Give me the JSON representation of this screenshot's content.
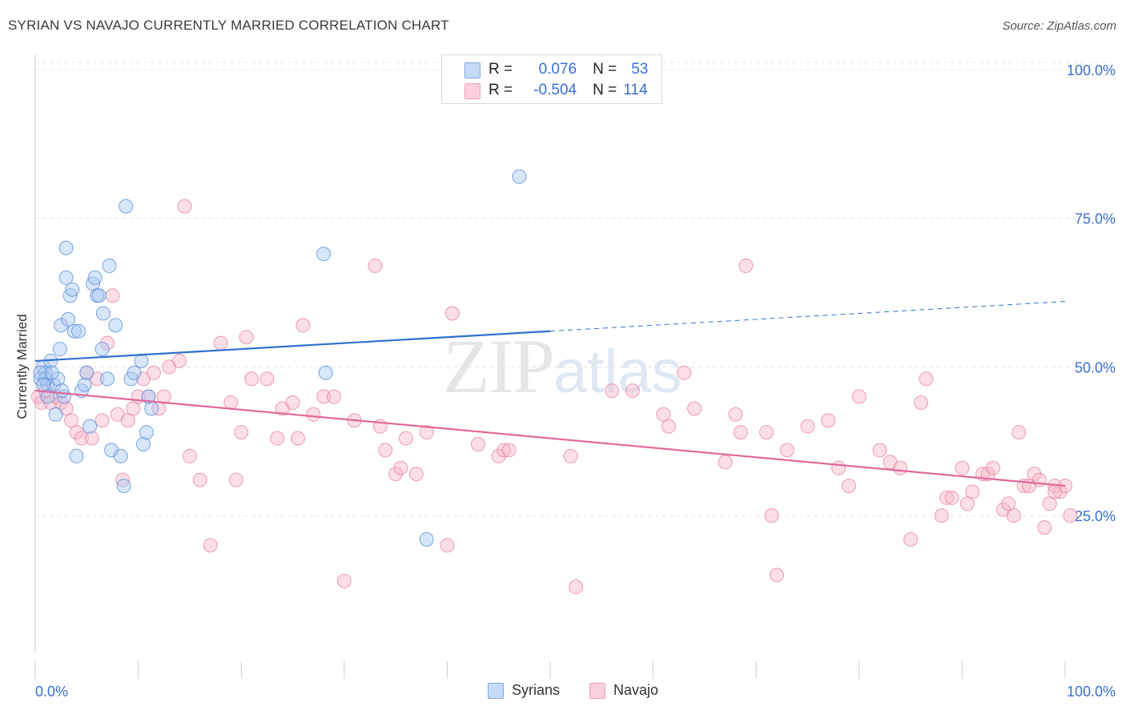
{
  "header": {
    "title": "SYRIAN VS NAVAJO CURRENTLY MARRIED CORRELATION CHART",
    "source": "Source: ZipAtlas.com"
  },
  "watermark": {
    "zip": "ZIP",
    "atlas": "atlas"
  },
  "legend": {
    "rows": [
      {
        "r_label": "R =",
        "r_value": "0.076",
        "n_label": "N =",
        "n_value": "53",
        "color": "#a9c8f3"
      },
      {
        "r_label": "R =",
        "r_value": "-0.504",
        "n_label": "N =",
        "n_value": "114",
        "color": "#f7b6c8"
      }
    ]
  },
  "bottom_legend": [
    {
      "label": "Syrians",
      "color": "#a9c8f3"
    },
    {
      "label": "Navajo",
      "color": "#f7b6c8"
    }
  ],
  "chart_data": {
    "type": "scatter",
    "title": "SYRIAN VS NAVAJO CURRENTLY MARRIED CORRELATION CHART",
    "xlabel": "",
    "ylabel": "Currently Married",
    "xlim": [
      0,
      100
    ],
    "ylim": [
      2,
      102
    ],
    "x_tick_labels": [
      "0.0%",
      "100.0%"
    ],
    "y_tick_labels": [
      "25.0%",
      "50.0%",
      "75.0%",
      "100.0%"
    ],
    "y_ticks": [
      25,
      50,
      75,
      100
    ],
    "grid": true,
    "colors": {
      "syrians_fill": "#a9c8f3",
      "syrians_stroke": "#5b8fd6",
      "syrians_line": "#2f6fce",
      "navajo_fill": "#f7b6c8",
      "navajo_stroke": "#e67fa0",
      "navajo_line": "#e0679a"
    },
    "series": [
      {
        "name": "Syrians",
        "trend": {
          "x0": 0,
          "y0": 51.0,
          "x1": 50,
          "y1": 56.0,
          "x_ext": 100,
          "y_ext": 61.0
        },
        "points": [
          [
            0.5,
            48
          ],
          [
            0.8,
            50
          ],
          [
            1.0,
            49
          ],
          [
            1.2,
            47
          ],
          [
            1.5,
            51
          ],
          [
            1.8,
            47
          ],
          [
            2.0,
            42
          ],
          [
            2.2,
            48
          ],
          [
            2.4,
            53
          ],
          [
            2.5,
            57
          ],
          [
            2.8,
            45
          ],
          [
            3.0,
            65
          ],
          [
            3.2,
            58
          ],
          [
            3.4,
            62
          ],
          [
            3.6,
            63
          ],
          [
            3.8,
            56
          ],
          [
            4.0,
            35
          ],
          [
            4.2,
            56
          ],
          [
            4.5,
            46
          ],
          [
            4.8,
            47
          ],
          [
            5.0,
            49
          ],
          [
            5.3,
            40
          ],
          [
            5.6,
            64
          ],
          [
            5.8,
            65
          ],
          [
            6.0,
            62
          ],
          [
            6.2,
            62
          ],
          [
            6.5,
            53
          ],
          [
            6.6,
            59
          ],
          [
            7.0,
            48
          ],
          [
            7.2,
            67
          ],
          [
            7.4,
            36
          ],
          [
            7.8,
            57
          ],
          [
            8.3,
            35
          ],
          [
            8.6,
            30
          ],
          [
            8.8,
            77
          ],
          [
            9.3,
            48
          ],
          [
            9.6,
            49
          ],
          [
            10.3,
            51
          ],
          [
            10.5,
            37
          ],
          [
            10.8,
            39
          ],
          [
            11.0,
            45
          ],
          [
            11.3,
            43
          ],
          [
            3.0,
            70
          ],
          [
            28,
            69
          ],
          [
            28.2,
            49
          ],
          [
            38,
            21
          ],
          [
            47,
            82
          ],
          [
            1.0,
            48
          ],
          [
            0.5,
            49
          ],
          [
            1.6,
            49
          ],
          [
            2.6,
            46
          ],
          [
            0.8,
            47
          ],
          [
            1.2,
            45
          ]
        ]
      },
      {
        "name": "Navajo",
        "trend": {
          "x0": 0,
          "y0": 46.0,
          "x1": 100,
          "y1": 30.0
        },
        "points": [
          [
            0.3,
            45
          ],
          [
            0.6,
            44
          ],
          [
            1.0,
            46
          ],
          [
            1.5,
            44
          ],
          [
            2.0,
            45
          ],
          [
            2.5,
            44
          ],
          [
            3.0,
            43
          ],
          [
            3.5,
            41
          ],
          [
            4.0,
            39
          ],
          [
            4.5,
            38
          ],
          [
            5.0,
            49
          ],
          [
            5.5,
            38
          ],
          [
            6.0,
            48
          ],
          [
            6.5,
            41
          ],
          [
            7.0,
            54
          ],
          [
            7.5,
            62
          ],
          [
            8.0,
            42
          ],
          [
            8.5,
            31
          ],
          [
            9.0,
            41
          ],
          [
            9.5,
            43
          ],
          [
            10.0,
            45
          ],
          [
            10.5,
            48
          ],
          [
            11.0,
            45
          ],
          [
            11.5,
            49
          ],
          [
            12.0,
            43
          ],
          [
            12.5,
            45
          ],
          [
            13.0,
            50
          ],
          [
            14.0,
            51
          ],
          [
            14.5,
            77
          ],
          [
            15.0,
            35
          ],
          [
            16.0,
            31
          ],
          [
            17.0,
            20
          ],
          [
            18.0,
            54
          ],
          [
            19.0,
            44
          ],
          [
            19.5,
            31
          ],
          [
            20.0,
            39
          ],
          [
            20.5,
            55
          ],
          [
            21.0,
            48
          ],
          [
            22.5,
            48
          ],
          [
            23.5,
            38
          ],
          [
            24.0,
            43
          ],
          [
            25.0,
            44
          ],
          [
            25.5,
            38
          ],
          [
            26.0,
            57
          ],
          [
            27.0,
            42
          ],
          [
            28.0,
            45
          ],
          [
            29.0,
            45
          ],
          [
            30.0,
            14
          ],
          [
            31.0,
            41
          ],
          [
            33.0,
            67
          ],
          [
            33.5,
            40
          ],
          [
            34.0,
            36
          ],
          [
            35.0,
            32
          ],
          [
            35.5,
            33
          ],
          [
            36.0,
            38
          ],
          [
            37.0,
            32
          ],
          [
            38.0,
            39
          ],
          [
            40.0,
            20
          ],
          [
            40.5,
            59
          ],
          [
            43.0,
            37
          ],
          [
            45.0,
            35
          ],
          [
            45.5,
            36
          ],
          [
            46.0,
            36
          ],
          [
            52.0,
            35
          ],
          [
            52.5,
            13
          ],
          [
            56.0,
            46
          ],
          [
            58.0,
            46
          ],
          [
            61.0,
            42
          ],
          [
            61.5,
            40
          ],
          [
            63.0,
            49
          ],
          [
            64.0,
            43
          ],
          [
            67.0,
            34
          ],
          [
            68.0,
            42
          ],
          [
            68.5,
            39
          ],
          [
            69.0,
            67
          ],
          [
            71.0,
            39
          ],
          [
            71.5,
            25
          ],
          [
            72.0,
            15
          ],
          [
            73.0,
            36
          ],
          [
            75.0,
            40
          ],
          [
            77.0,
            41
          ],
          [
            78.0,
            33
          ],
          [
            79.0,
            30
          ],
          [
            80.0,
            45
          ],
          [
            82.0,
            36
          ],
          [
            83.0,
            34
          ],
          [
            84.0,
            33
          ],
          [
            85.0,
            21
          ],
          [
            86.0,
            44
          ],
          [
            86.5,
            48
          ],
          [
            88.0,
            25
          ],
          [
            88.5,
            28
          ],
          [
            89.0,
            28
          ],
          [
            90.0,
            33
          ],
          [
            90.5,
            27
          ],
          [
            91.0,
            29
          ],
          [
            92.0,
            32
          ],
          [
            92.5,
            32
          ],
          [
            93.0,
            33
          ],
          [
            94.0,
            26
          ],
          [
            94.5,
            27
          ],
          [
            95.0,
            25
          ],
          [
            95.5,
            39
          ],
          [
            96.0,
            30
          ],
          [
            96.5,
            30
          ],
          [
            97.0,
            32
          ],
          [
            97.5,
            31
          ],
          [
            98.0,
            23
          ],
          [
            98.5,
            27
          ],
          [
            99.0,
            30
          ],
          [
            99.5,
            29
          ],
          [
            100.0,
            30
          ],
          [
            100.5,
            25
          ],
          [
            99.0,
            29
          ]
        ]
      }
    ]
  }
}
